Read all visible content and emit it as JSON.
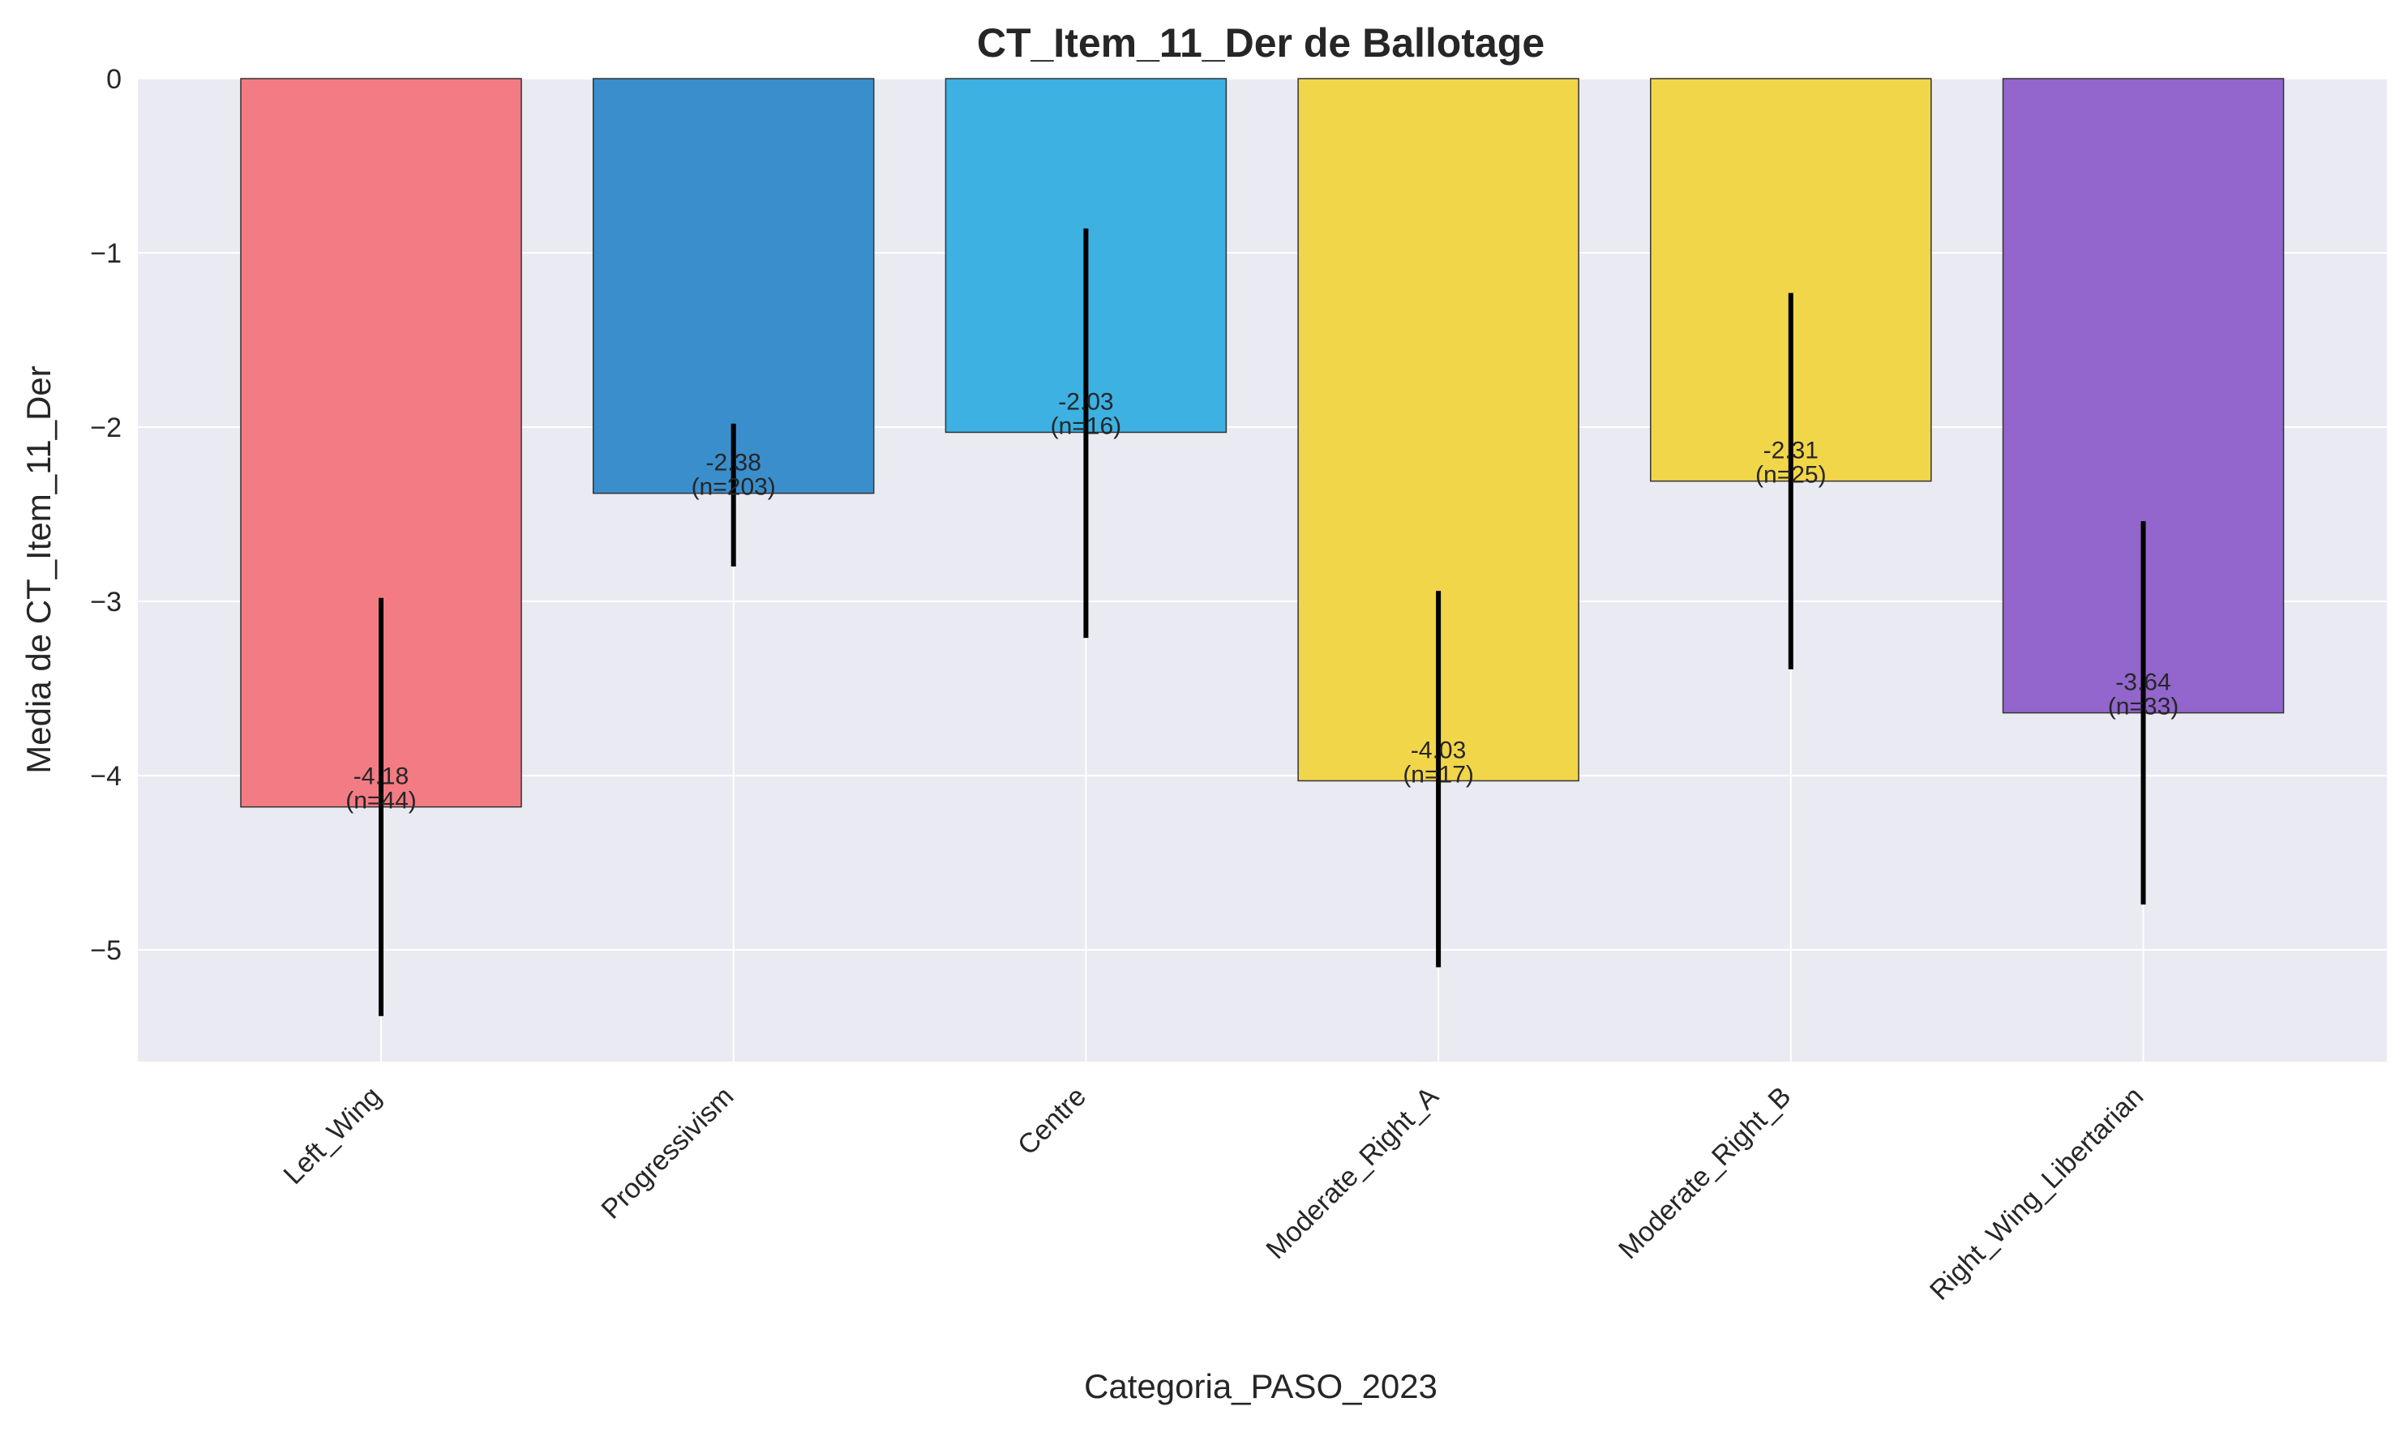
{
  "chart_data": {
    "type": "bar",
    "title": "CT_Item_11_Der de Ballotage",
    "xlabel": "Categoria_PASO_2023",
    "ylabel": "Media de CT_Item_11_Der",
    "ylim": [
      -5.64,
      0
    ],
    "yticks": [
      0,
      -1,
      -2,
      -3,
      -4,
      -5
    ],
    "ytick_labels": [
      "0",
      "−1",
      "−2",
      "−3",
      "−4",
      "−5"
    ],
    "grid": true,
    "categories": [
      "Left_Wing",
      "Progressivism",
      "Centre",
      "Moderate_Right_A",
      "Moderate_Right_B",
      "Right_Wing_Libertarian"
    ],
    "values": [
      -4.18,
      -2.38,
      -2.03,
      -4.03,
      -2.31,
      -3.64
    ],
    "n": [
      44,
      203,
      16,
      17,
      25,
      33
    ],
    "error_low": [
      -5.38,
      -2.8,
      -3.21,
      -5.1,
      -3.39,
      -4.74
    ],
    "error_high": [
      -2.98,
      -1.98,
      -0.86,
      -2.94,
      -1.23,
      -2.54
    ],
    "value_labels": [
      "-4.18",
      "-2.38",
      "-2.03",
      "-4.03",
      "-2.31",
      "-3.64"
    ],
    "n_labels": [
      "(n=44)",
      "(n=203)",
      "(n=16)",
      "(n=17)",
      "(n=25)",
      "(n=33)"
    ],
    "colors": [
      "#f27b84",
      "#3a8ecc",
      "#3cb1e2",
      "#f2d64a",
      "#f2d64a",
      "#9266cc"
    ],
    "background": "#eaeaf2",
    "grid_color": "#ffffff"
  }
}
